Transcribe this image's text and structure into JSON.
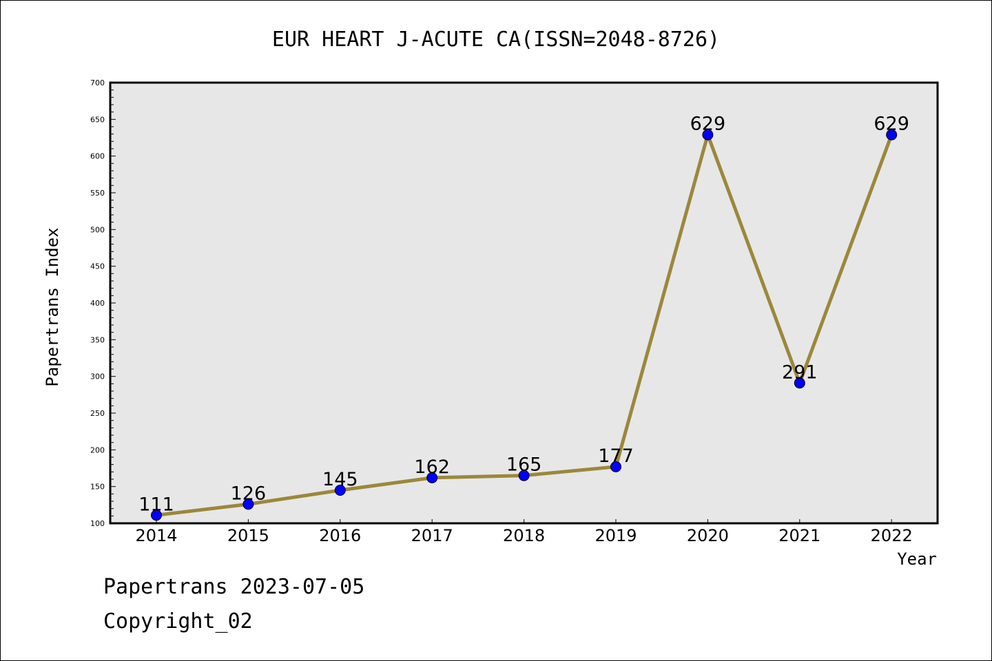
{
  "chart_data": {
    "type": "line",
    "title": "EUR HEART J-ACUTE CA(ISSN=2048-8726)",
    "xlabel": "Year",
    "ylabel": "Papertrans Index",
    "categories": [
      "2014",
      "2015",
      "2016",
      "2017",
      "2018",
      "2019",
      "2020",
      "2021",
      "2022"
    ],
    "series": [
      {
        "values": [
          111,
          126,
          145,
          162,
          165,
          177,
          629,
          291,
          629
        ]
      }
    ],
    "ylim": [
      100,
      700
    ],
    "yticks": [
      100,
      150,
      200,
      250,
      300,
      350,
      400,
      450,
      500,
      550,
      600,
      650,
      700
    ],
    "grid": false,
    "colors": {
      "line": "#9c873b",
      "marker": "#0000ff",
      "plot_bg": "#e7e7e7"
    }
  },
  "footer": {
    "line1": "Papertrans 2023-07-05",
    "line2": "Copyright_02"
  }
}
